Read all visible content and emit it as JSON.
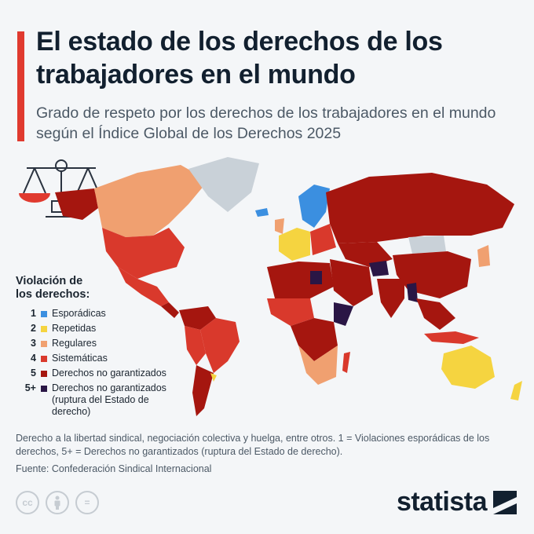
{
  "header": {
    "title": "El estado de los derechos de los trabajadores en el mundo",
    "subtitle": "Grado de respeto por los derechos de los trabajadores en el mundo según el Índice Global de los Derechos 2025"
  },
  "colors": {
    "accent": "#e03a2f",
    "no_data": "#c9d1d8",
    "level_1": "#3b8fe0",
    "level_2": "#f5d440",
    "level_3": "#f0a070",
    "level_4": "#d9392c",
    "level_5": "#a5160f",
    "level_5_plus": "#2a1645"
  },
  "legend": {
    "title": "Violación de los derechos:",
    "items": [
      {
        "code": "1",
        "label": "Esporádicas",
        "color": "#3b8fe0"
      },
      {
        "code": "2",
        "label": "Repetidas",
        "color": "#f5d440"
      },
      {
        "code": "3",
        "label": "Regulares",
        "color": "#f0a070"
      },
      {
        "code": "4",
        "label": "Sistemáticas",
        "color": "#d9392c"
      },
      {
        "code": "5",
        "label": "Derechos no garantizados",
        "color": "#a5160f"
      },
      {
        "code": "5+",
        "label": "Derechos no garantizados (ruptura del Estado de derecho)",
        "color": "#2a1645"
      }
    ]
  },
  "map_icons": [
    "scales-icon"
  ],
  "footer": {
    "note": "Derecho a la libertad sindical, negociación colectiva y huelga, entre otros. 1 = Violaciones esporádicas de los derechos, 5+ = Derechos no garantizados (ruptura del Estado de derecho).",
    "source": "Fuente: Confederación Sindical Internacional",
    "license_icons": [
      "cc-icon",
      "attribution-icon",
      "no-derivatives-icon"
    ],
    "brand": "statista"
  }
}
